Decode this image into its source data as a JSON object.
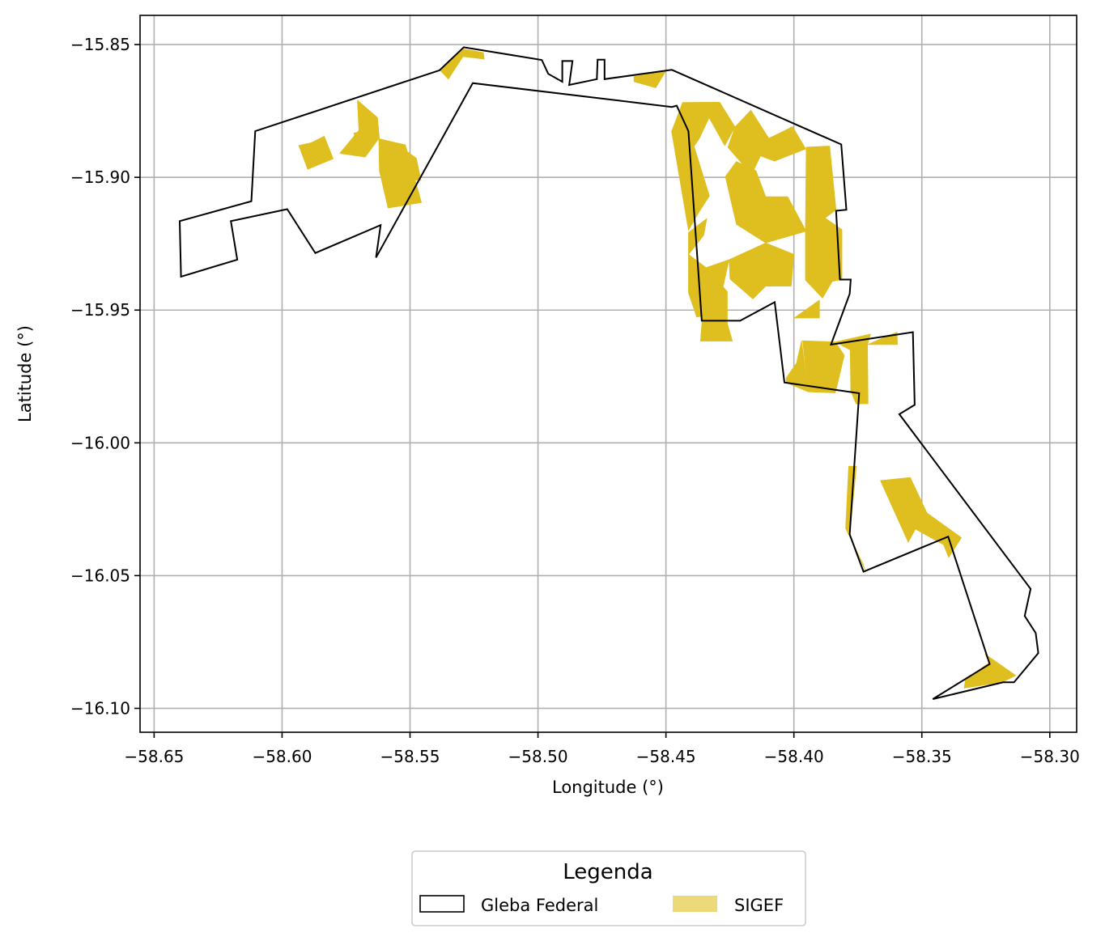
{
  "chart_data": {
    "type": "map",
    "xlabel": "Longitude (°)",
    "ylabel": "Latitude (°)",
    "xlim": [
      -58.6555,
      -58.2895
    ],
    "ylim": [
      -16.109,
      -15.839
    ],
    "grid": true,
    "x_ticks": [
      -58.65,
      -58.6,
      -58.55,
      -58.5,
      -58.45,
      -58.4,
      -58.35,
      -58.3
    ],
    "x_tick_labels": [
      "−58.65",
      "−58.60",
      "−58.55",
      "−58.50",
      "−58.45",
      "−58.40",
      "−58.35",
      "−58.30"
    ],
    "y_ticks": [
      -15.85,
      -15.9,
      -15.95,
      -16.0,
      -16.05,
      -16.1
    ],
    "y_tick_labels": [
      "−15.85",
      "−15.90",
      "−15.95",
      "−16.00",
      "−16.05",
      "−16.10"
    ],
    "legend": {
      "title": "Legenda",
      "placement": "bottom-center, below axes",
      "entries": [
        {
          "label": "Gleba Federal",
          "style": "outline",
          "color": "#000000"
        },
        {
          "label": "SIGEF",
          "style": "fill",
          "color": "#DFBF1F"
        }
      ]
    },
    "layers": [
      {
        "name": "Gleba Federal",
        "style": "outline",
        "color": "#000000",
        "polygons": [
          [
            [
              -58.6395,
              -15.9374
            ],
            [
              -58.64,
              -15.9165
            ],
            [
              -58.612,
              -15.909
            ],
            [
              -58.6105,
              -15.8826
            ],
            [
              -58.5385,
              -15.8597
            ],
            [
              -58.529,
              -15.851
            ],
            [
              -58.4985,
              -15.8558
            ],
            [
              -58.496,
              -15.861
            ],
            [
              -58.4905,
              -15.864
            ],
            [
              -58.4905,
              -15.8562
            ],
            [
              -58.4865,
              -15.8562
            ],
            [
              -58.4878,
              -15.8652
            ],
            [
              -58.477,
              -15.863
            ],
            [
              -58.4767,
              -15.8557
            ],
            [
              -58.474,
              -15.8557
            ],
            [
              -58.474,
              -15.863
            ],
            [
              -58.4477,
              -15.8595
            ],
            [
              -58.3815,
              -15.8876
            ],
            [
              -58.3795,
              -15.9122
            ],
            [
              -58.3835,
              -15.9126
            ],
            [
              -58.382,
              -15.9385
            ],
            [
              -58.3778,
              -15.9385
            ],
            [
              -58.3782,
              -15.9439
            ],
            [
              -58.3855,
              -15.963
            ],
            [
              -58.3535,
              -15.9583
            ],
            [
              -58.3528,
              -15.9857
            ],
            [
              -58.3588,
              -15.9892
            ],
            [
              -58.3075,
              -16.055
            ],
            [
              -58.3098,
              -16.0652
            ],
            [
              -58.3055,
              -16.0716
            ],
            [
              -58.3045,
              -16.0792
            ],
            [
              -58.314,
              -16.0902
            ],
            [
              -58.3183,
              -16.0902
            ],
            [
              -58.3457,
              -16.0965
            ],
            [
              -58.3235,
              -16.0833
            ],
            [
              -58.3397,
              -16.0353
            ],
            [
              -58.3728,
              -16.0485
            ],
            [
              -58.3782,
              -16.0345
            ],
            [
              -58.3745,
              -15.9813
            ],
            [
              -58.4037,
              -15.9773
            ],
            [
              -58.4075,
              -15.947
            ],
            [
              -58.421,
              -15.954
            ],
            [
              -58.436,
              -15.954
            ],
            [
              -58.4412,
              -15.8826
            ],
            [
              -58.4458,
              -15.873
            ],
            [
              -58.4477,
              -15.8735
            ],
            [
              -58.5255,
              -15.8645
            ],
            [
              -58.5633,
              -15.9302
            ],
            [
              -58.5615,
              -15.918
            ],
            [
              -58.587,
              -15.9285
            ],
            [
              -58.598,
              -15.912
            ],
            [
              -58.62,
              -15.9165
            ],
            [
              -58.6175,
              -15.931
            ]
          ]
        ]
      },
      {
        "name": "SIGEF",
        "style": "fill",
        "color": "#DFBF1F",
        "polygons": [
          [
            [
              -58.5385,
              -15.8595
            ],
            [
              -58.529,
              -15.8517
            ],
            [
              -58.5213,
              -15.853
            ],
            [
              -58.521,
              -15.8555
            ],
            [
              -58.5293,
              -15.8545
            ],
            [
              -58.535,
              -15.863
            ]
          ],
          [
            [
              -58.4625,
              -15.862
            ],
            [
              -58.45,
              -15.86
            ],
            [
              -58.454,
              -15.8663
            ],
            [
              -58.4625,
              -15.864
            ]
          ],
          [
            [
              -58.5885,
              -15.8869
            ],
            [
              -58.5835,
              -15.8845
            ],
            [
              -58.58,
              -15.893
            ],
            [
              -58.59,
              -15.897
            ],
            [
              -58.5935,
              -15.888
            ]
          ],
          [
            [
              -58.5655,
              -15.8819
            ],
            [
              -58.572,
              -15.8833
            ],
            [
              -58.5698,
              -15.8901
            ],
            [
              -58.5622,
              -15.8854
            ]
          ],
          [
            [
              -58.57,
              -15.8823
            ],
            [
              -58.5706,
              -15.8709
            ],
            [
              -58.5627,
              -15.8775
            ],
            [
              -58.562,
              -15.8851
            ],
            [
              -58.5675,
              -15.8924
            ],
            [
              -58.5775,
              -15.891
            ]
          ],
          [
            [
              -58.5622,
              -15.8854
            ],
            [
              -58.5518,
              -15.8878
            ],
            [
              -58.5455,
              -15.9095
            ],
            [
              -58.5586,
              -15.9116
            ],
            [
              -58.562,
              -15.8975
            ]
          ],
          [
            [
              -58.5515,
              -15.89
            ],
            [
              -58.5475,
              -15.8928
            ],
            [
              -58.5457,
              -15.9011
            ],
            [
              -58.5523,
              -15.9008
            ]
          ],
          [
            [
              -58.4478,
              -15.8827
            ],
            [
              -58.4435,
              -15.8718
            ],
            [
              -58.429,
              -15.8717
            ],
            [
              -58.4322,
              -15.8757
            ],
            [
              -58.437,
              -15.8855
            ],
            [
              -58.439,
              -15.8883
            ],
            [
              -58.433,
              -15.907
            ],
            [
              -58.437,
              -15.913
            ],
            [
              -58.4412,
              -15.92
            ]
          ],
          [
            [
              -58.429,
              -15.8717
            ],
            [
              -58.423,
              -15.881
            ],
            [
              -58.427,
              -15.8881
            ],
            [
              -58.4338,
              -15.8764
            ]
          ],
          [
            [
              -58.423,
              -15.881
            ],
            [
              -58.4168,
              -15.8747
            ],
            [
              -58.4098,
              -15.8853
            ],
            [
              -58.4165,
              -15.899
            ],
            [
              -58.4258,
              -15.8887
            ]
          ],
          [
            [
              -58.4098,
              -15.8853
            ],
            [
              -58.4005,
              -15.8809
            ],
            [
              -58.3953,
              -15.8893
            ],
            [
              -58.4076,
              -15.8939
            ],
            [
              -58.413,
              -15.892
            ]
          ],
          [
            [
              -58.4225,
              -15.894
            ],
            [
              -58.4148,
              -15.8975
            ],
            [
              -58.411,
              -15.9073
            ],
            [
              -58.4024,
              -15.9073
            ],
            [
              -58.3952,
              -15.9203
            ],
            [
              -58.411,
              -15.9247
            ],
            [
              -58.4225,
              -15.9177
            ],
            [
              -58.4268,
              -15.8997
            ]
          ],
          [
            [
              -58.3952,
              -15.8886
            ],
            [
              -58.386,
              -15.8882
            ],
            [
              -58.3835,
              -15.9122
            ],
            [
              -58.3878,
              -15.9153
            ],
            [
              -58.3955,
              -15.9183
            ]
          ],
          [
            [
              -58.3955,
              -15.9183
            ],
            [
              -58.3878,
              -15.9153
            ],
            [
              -58.3812,
              -15.9197
            ],
            [
              -58.3812,
              -15.9385
            ],
            [
              -58.385,
              -15.9392
            ],
            [
              -58.3888,
              -15.9455
            ],
            [
              -58.3955,
              -15.9387
            ]
          ],
          [
            [
              -58.4352,
              -15.9218
            ],
            [
              -58.4412,
              -15.9292
            ],
            [
              -58.4412,
              -15.9208
            ],
            [
              -58.434,
              -15.9155
            ]
          ],
          [
            [
              -58.411,
              -15.9247
            ],
            [
              -58.4253,
              -15.931
            ],
            [
              -58.425,
              -15.9383
            ],
            [
              -58.416,
              -15.9458
            ],
            [
              -58.411,
              -15.941
            ],
            [
              -58.401,
              -15.941
            ],
            [
              -58.4,
              -15.929
            ]
          ],
          [
            [
              -58.4253,
              -15.931
            ],
            [
              -58.4343,
              -15.934
            ],
            [
              -58.4412,
              -15.929
            ],
            [
              -58.4412,
              -15.9435
            ],
            [
              -58.438,
              -15.9527
            ],
            [
              -58.4298,
              -15.9507
            ]
          ],
          [
            [
              -58.4343,
              -15.934
            ],
            [
              -58.426,
              -15.943
            ],
            [
              -58.426,
              -15.955
            ],
            [
              -58.424,
              -15.9617
            ],
            [
              -58.4365,
              -15.9617
            ]
          ],
          [
            [
              -58.39,
              -15.9462
            ],
            [
              -58.39,
              -15.953
            ],
            [
              -58.4,
              -15.953
            ]
          ],
          [
            [
              -58.3966,
              -15.9615
            ],
            [
              -58.3838,
              -15.962
            ],
            [
              -58.3803,
              -15.967
            ],
            [
              -58.3828,
              -15.9772
            ],
            [
              -58.3838,
              -15.9812
            ],
            [
              -58.3944,
              -15.9808
            ]
          ],
          [
            [
              -58.3838,
              -15.962
            ],
            [
              -58.378,
              -15.965
            ],
            [
              -58.3778,
              -15.9805
            ],
            [
              -58.3757,
              -15.9853
            ],
            [
              -58.371,
              -15.9853
            ],
            [
              -58.3712,
              -15.963
            ],
            [
              -58.37,
              -15.959
            ]
          ],
          [
            [
              -58.3712,
              -15.963
            ],
            [
              -58.3595,
              -15.963
            ],
            [
              -58.3597,
              -15.9583
            ],
            [
              -58.363,
              -15.9595
            ]
          ],
          [
            [
              -58.3944,
              -15.9808
            ],
            [
              -58.403,
              -15.9773
            ],
            [
              -58.403,
              -15.9755
            ],
            [
              -58.399,
              -15.97
            ],
            [
              -58.397,
              -15.9615
            ]
          ],
          [
            [
              -58.3782,
              -16.0345
            ],
            [
              -58.372,
              -16.0485
            ],
            [
              -58.373,
              -16.0455
            ],
            [
              -58.3798,
              -16.0322
            ],
            [
              -58.3786,
              -16.0088
            ],
            [
              -58.3755,
              -16.0088
            ]
          ],
          [
            [
              -58.3662,
              -16.0142
            ],
            [
              -58.3545,
              -16.013
            ],
            [
              -58.348,
              -16.0264
            ],
            [
              -58.3525,
              -16.0325
            ],
            [
              -58.3553,
              -16.0375
            ]
          ],
          [
            [
              -58.3525,
              -16.0325
            ],
            [
              -58.348,
              -16.0264
            ],
            [
              -58.3345,
              -16.0357
            ],
            [
              -58.3395,
              -16.0432
            ],
            [
              -58.3415,
              -16.0384
            ]
          ],
          [
            [
              -58.3237,
              -16.0828
            ],
            [
              -58.3253,
              -16.0795
            ],
            [
              -58.3133,
              -16.0876
            ],
            [
              -58.3186,
              -16.0902
            ],
            [
              -58.3335,
              -16.0924
            ],
            [
              -58.333,
              -16.0892
            ]
          ]
        ]
      }
    ]
  }
}
